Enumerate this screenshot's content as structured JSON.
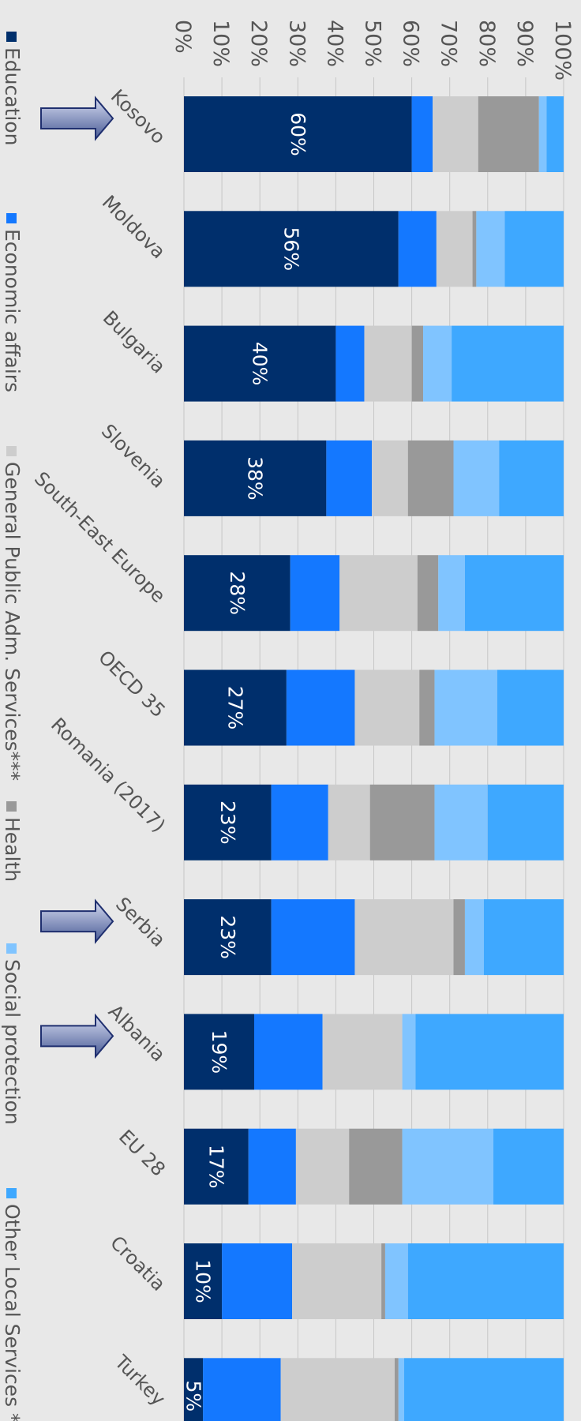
{
  "chart_data": {
    "type": "bar",
    "stacked": true,
    "orientation": "rotated-90",
    "categories": [
      "Kosovo",
      "Moldova",
      "Bulgaria",
      "Slovenia",
      "South-East Europe",
      "OECD 35",
      "Romania (2017)",
      "Serbia",
      "Albania",
      "EU 28",
      "Croatia",
      "Turkey"
    ],
    "value_axis": {
      "ticks": [
        "0%",
        "10%",
        "20%",
        "30%",
        "40%",
        "50%",
        "60%",
        "70%",
        "80%",
        "90%",
        "100%"
      ],
      "range": [
        0,
        100
      ]
    },
    "series": [
      {
        "name": "Education",
        "color": "#002f6c",
        "values": [
          60,
          56.5,
          40,
          37.5,
          28,
          27,
          23,
          23,
          18.5,
          17,
          10,
          5
        ],
        "labels": [
          "60%",
          "56%",
          "40%",
          "38%",
          "28%",
          "27%",
          "23%",
          "23%",
          "19%",
          "17%",
          "10%",
          "5%"
        ]
      },
      {
        "name": "Economic affairs",
        "color": "#1478ff",
        "values": [
          5.5,
          10,
          7.5,
          12,
          13,
          18,
          15,
          22,
          18,
          12.5,
          18.5,
          20.5
        ]
      },
      {
        "name": "General Public Adm. Services***",
        "color": "#cdcdcd",
        "values": [
          12,
          9.5,
          12.5,
          9.5,
          20.5,
          17,
          11,
          26,
          21,
          14,
          23.5,
          30
        ]
      },
      {
        "name": "Health",
        "color": "#999999",
        "values": [
          16,
          1,
          3,
          12,
          5.5,
          4,
          17,
          3,
          0,
          14,
          1,
          1
        ]
      },
      {
        "name": "Social protection",
        "color": "#80c4ff",
        "values": [
          2,
          7.5,
          7.5,
          12,
          7,
          16.5,
          14,
          5,
          3.5,
          24,
          6,
          1.5
        ]
      },
      {
        "name": "Other Local Services ****",
        "color": "#3ea8ff",
        "values": [
          4.5,
          15.5,
          29.5,
          17,
          26,
          17.5,
          20,
          21,
          39,
          18.5,
          41,
          42
        ]
      }
    ],
    "highlighted_categories": [
      "Kosovo",
      "Serbia",
      "Albania"
    ],
    "legend_placement": "left",
    "grid": true
  }
}
